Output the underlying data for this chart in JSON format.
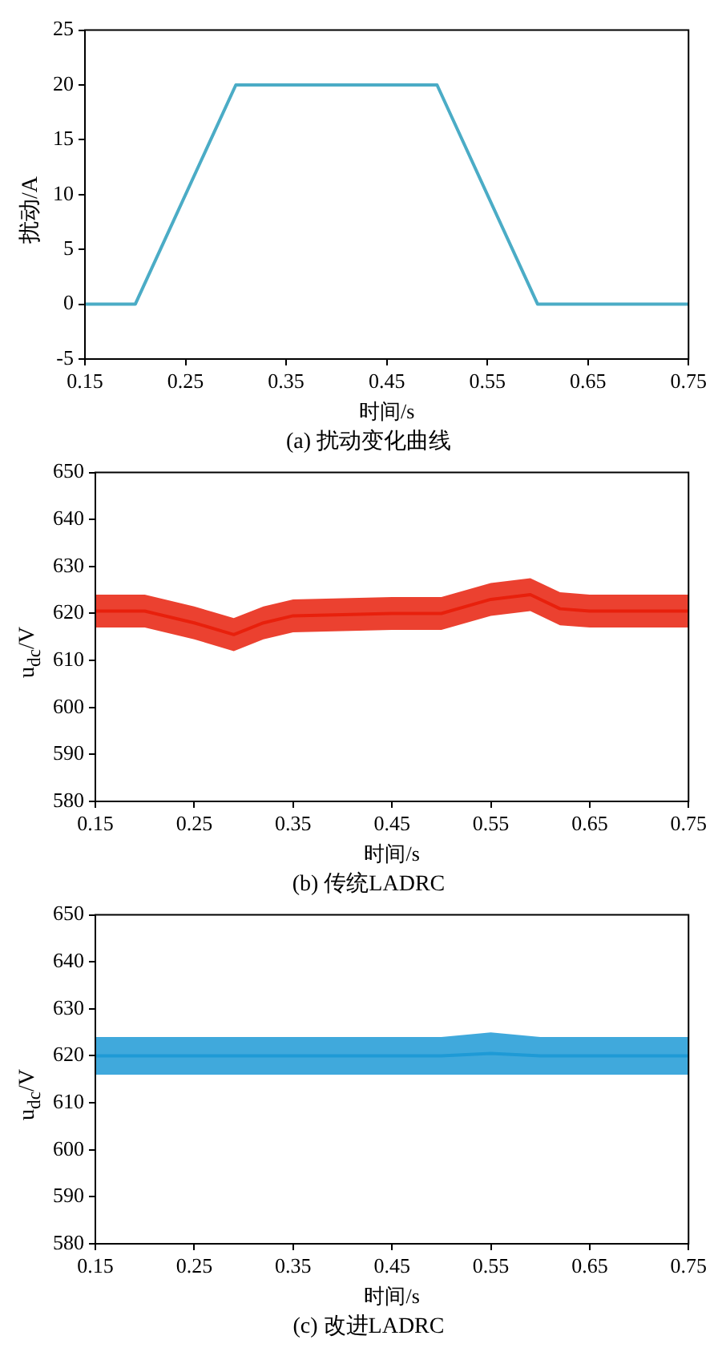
{
  "chart_data": [
    {
      "type": "line",
      "title": "(a) 扰动变化曲线",
      "xlabel": "时间/s",
      "ylabel": "扰动/A",
      "marker": "none",
      "grid": false,
      "xlim": [
        0.15,
        0.75
      ],
      "xticks": [
        0.15,
        0.25,
        0.35,
        0.45,
        0.55,
        0.65,
        0.75
      ],
      "ylim": [
        -5,
        25
      ],
      "yticks": [
        -5,
        0,
        5,
        10,
        15,
        20,
        25
      ],
      "series": [
        {
          "color": "#4bacc6",
          "x": [
            0.15,
            0.2,
            0.3,
            0.5,
            0.6,
            0.75
          ],
          "values": [
            0,
            0,
            20,
            20,
            0,
            0
          ]
        }
      ]
    },
    {
      "type": "line",
      "title": "(b) 传统LADRC",
      "xlabel": "时间/s",
      "ylabel": "u$_{dc}$/V",
      "marker": "none",
      "grid": false,
      "xlim": [
        0.15,
        0.75
      ],
      "xticks": [
        0.15,
        0.25,
        0.35,
        0.45,
        0.55,
        0.65,
        0.75
      ],
      "ylim": [
        580,
        650
      ],
      "yticks": [
        580,
        590,
        600,
        610,
        620,
        630,
        640,
        650
      ],
      "series": [
        {
          "color": "#e8200c",
          "x": [
            0.15,
            0.2,
            0.25,
            0.29,
            0.32,
            0.35,
            0.45,
            0.5,
            0.55,
            0.59,
            0.62,
            0.65,
            0.75
          ],
          "values": [
            620.5,
            620.5,
            618,
            615.5,
            618,
            619.5,
            620,
            620,
            623,
            624,
            621,
            620.5,
            620.5
          ],
          "lower": [
            617,
            617,
            614.5,
            612,
            614.5,
            616,
            616.5,
            616.5,
            619.5,
            620.5,
            617.5,
            617,
            617
          ],
          "upper": [
            624,
            624,
            621.5,
            619,
            621.5,
            623,
            623.5,
            623.5,
            626.5,
            627.5,
            624.5,
            624,
            624
          ]
        }
      ]
    },
    {
      "type": "line",
      "title": "(c) 改进LADRC",
      "xlabel": "时间/s",
      "ylabel": "u$_{dc}$/V",
      "marker": "none",
      "grid": false,
      "xlim": [
        0.15,
        0.75
      ],
      "xticks": [
        0.15,
        0.25,
        0.35,
        0.45,
        0.55,
        0.65,
        0.75
      ],
      "ylim": [
        580,
        650
      ],
      "yticks": [
        580,
        590,
        600,
        610,
        620,
        630,
        640,
        650
      ],
      "series": [
        {
          "color": "#1e9ad6",
          "x": [
            0.15,
            0.35,
            0.5,
            0.55,
            0.6,
            0.75
          ],
          "values": [
            620,
            620,
            620,
            620.5,
            620,
            620
          ],
          "lower": [
            616,
            616,
            616,
            616,
            616,
            616
          ],
          "upper": [
            624,
            624,
            624,
            625,
            624,
            624
          ]
        }
      ]
    }
  ]
}
